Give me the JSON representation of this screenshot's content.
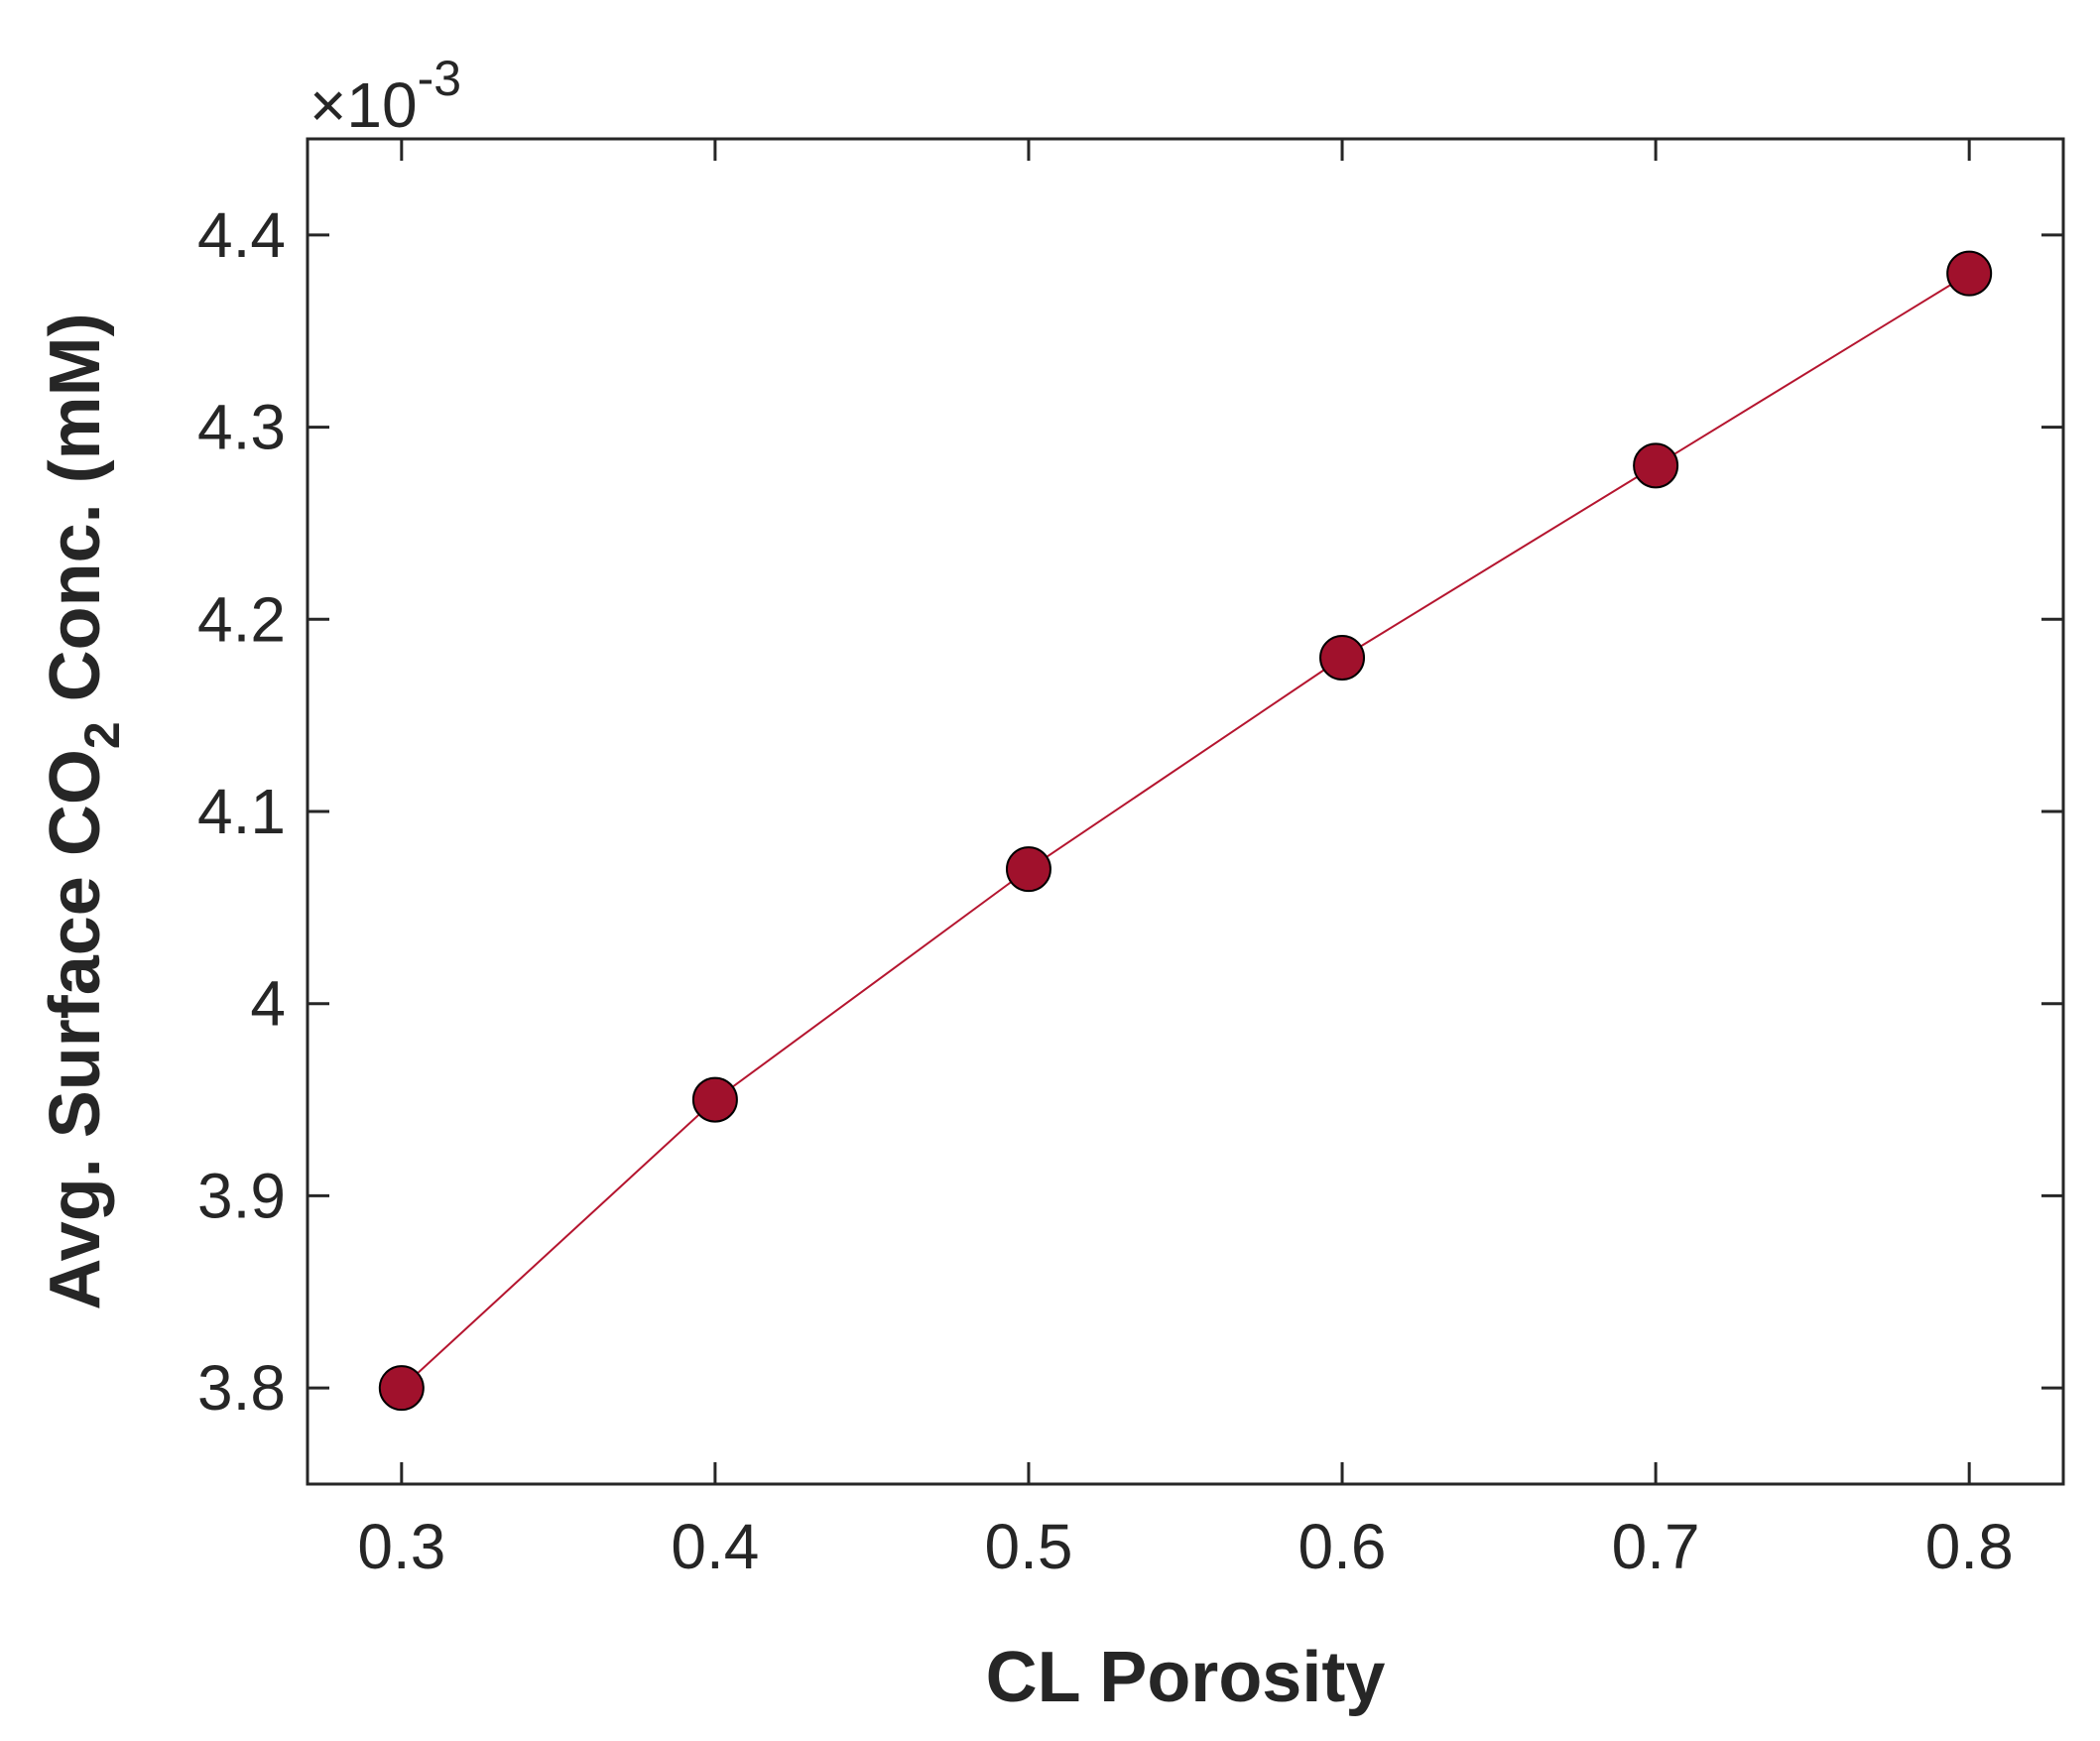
{
  "chart_data": {
    "type": "line",
    "xlabel": "CL Porosity",
    "ylabel": {
      "prefix": "Avg. Surface CO",
      "subscript": "2",
      "suffix": " Conc. (mM)"
    },
    "y_multiplier": {
      "symbol": "×",
      "base": "10",
      "exponent": "-3"
    },
    "xlim": [
      0.27,
      0.83
    ],
    "ylim": [
      3.75,
      4.45
    ],
    "xticks": [
      0.3,
      0.4,
      0.5,
      0.6,
      0.7,
      0.8
    ],
    "xtick_labels": [
      "0.3",
      "0.4",
      "0.5",
      "0.6",
      "0.7",
      "0.8"
    ],
    "yticks": [
      3.8,
      3.9,
      4.0,
      4.1,
      4.2,
      4.3,
      4.4
    ],
    "ytick_labels": [
      "3.8",
      "3.9",
      "4",
      "4.1",
      "4.2",
      "4.3",
      "4.4"
    ],
    "grid": false,
    "series": [
      {
        "x": [
          0.3,
          0.4,
          0.5,
          0.6,
          0.7,
          0.8
        ],
        "y": [
          3.8,
          3.95,
          4.07,
          4.18,
          4.28,
          4.38
        ],
        "marker": "circle",
        "line_color": "#b5152f",
        "marker_fill": "#a0112c",
        "marker_edge": "#000000"
      }
    ]
  }
}
